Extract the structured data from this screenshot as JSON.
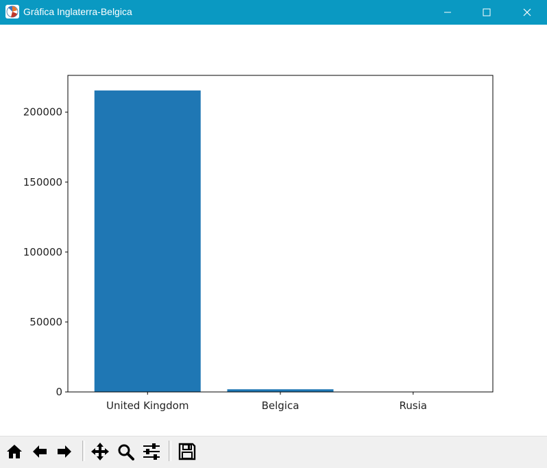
{
  "window": {
    "title": "Gráfica Inglaterra-Belgica",
    "controls": [
      "minimize-icon",
      "maximize-icon",
      "close-icon"
    ]
  },
  "chart_data": {
    "type": "bar",
    "categories": [
      "United Kingdom",
      "Belgica",
      "Rusia"
    ],
    "values": [
      215500,
      1900,
      0
    ],
    "title": "",
    "xlabel": "",
    "ylabel": "",
    "ylim": [
      0,
      226300
    ],
    "yticks": [
      0,
      50000,
      100000,
      150000,
      200000
    ],
    "grid": false,
    "color": "#1f77b4"
  },
  "toolbar": {
    "icons": [
      "home-icon",
      "back-icon",
      "forward-icon",
      "pan-icon",
      "zoom-icon",
      "configure-subplots-icon",
      "save-icon"
    ]
  }
}
